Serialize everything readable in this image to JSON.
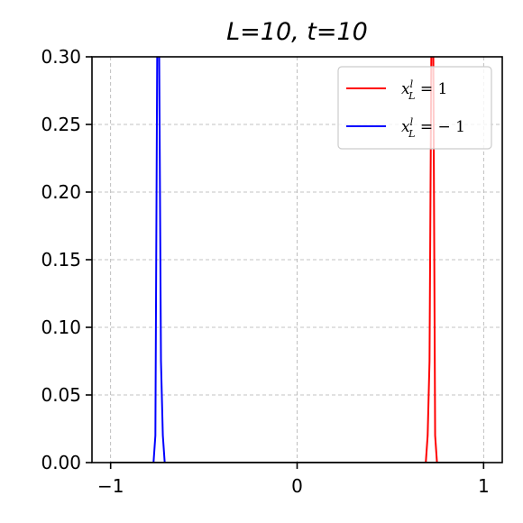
{
  "chart_data": {
    "type": "line",
    "title": "L=10, t=10",
    "xlabel": "",
    "ylabel": "",
    "xlim": [
      -1.1,
      1.1
    ],
    "ylim": [
      0,
      0.3
    ],
    "xticks": [
      -1,
      0,
      1
    ],
    "xtick_labels": [
      "−1",
      "0",
      "1"
    ],
    "yticks": [
      0.0,
      0.05,
      0.1,
      0.15,
      0.2,
      0.25,
      0.3
    ],
    "ytick_labels": [
      "0.00",
      "0.05",
      "0.10",
      "0.15",
      "0.20",
      "0.25",
      "0.30"
    ],
    "grid": true,
    "legend_position": "top-right",
    "series": [
      {
        "name": "x_L^l = 1",
        "legend_main": "x",
        "legend_sup": "l",
        "legend_sub": "L",
        "legend_rhs": " = 1",
        "color": "#ff0000",
        "x": [
          -1.0,
          0.69,
          0.7,
          0.71,
          0.72,
          0.73,
          0.74,
          0.75,
          1.0
        ],
        "y": [
          0,
          0,
          0.02,
          0.075,
          0.31,
          0.31,
          0.02,
          0,
          0
        ]
      },
      {
        "name": "x_L^l = −1",
        "legend_main": "x",
        "legend_sup": "l",
        "legend_sub": "L",
        "legend_rhs": " = − 1",
        "color": "#0000ff",
        "x": [
          -1.0,
          -0.77,
          -0.76,
          -0.75,
          -0.74,
          -0.73,
          -0.72,
          -0.71,
          -0.7,
          1.0
        ],
        "y": [
          0,
          0,
          0.02,
          0.31,
          0.31,
          0.075,
          0.02,
          0,
          0,
          0
        ]
      }
    ],
    "baseline_color": "#000000"
  }
}
